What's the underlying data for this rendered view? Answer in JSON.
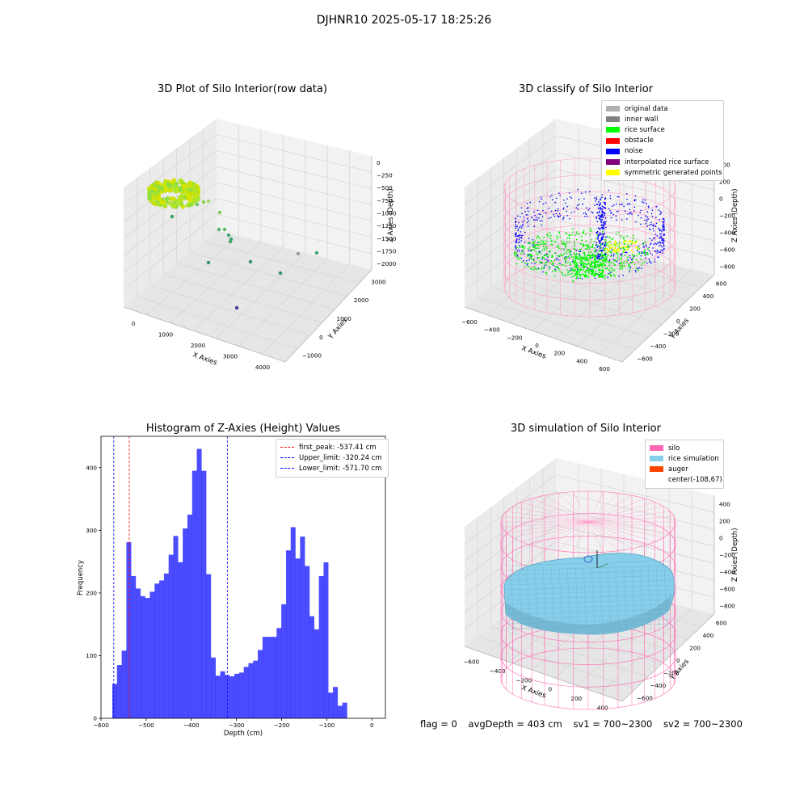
{
  "suptitle": "DJHNR10 2025-05-17 18:25:26",
  "plots": {
    "raw": {
      "title": "3D Plot of Silo Interior(row data)",
      "xlabel": "X Axies",
      "ylabel": "Y Axies",
      "zlabel": "Z Axies (Depth)",
      "xticks": [
        "0",
        "1000",
        "2000",
        "3000",
        "4000"
      ],
      "yticks": [
        "−1000",
        "0",
        "1000",
        "2000",
        "3000"
      ],
      "zticks": [
        "0",
        "−250",
        "−500",
        "−750",
        "−1000",
        "−1250",
        "−1500",
        "−1750",
        "−2000"
      ]
    },
    "classify": {
      "title": "3D classify of Silo Interior",
      "xlabel": "X Axies",
      "ylabel": "Y Axies",
      "zlabel": "Z Axies (Depth)",
      "xticks": [
        "−600",
        "−400",
        "−200",
        "0",
        "200",
        "400",
        "600"
      ],
      "yticks": [
        "−600",
        "−400",
        "−200",
        "0",
        "200",
        "400",
        "600"
      ],
      "zticks": [
        "400",
        "200",
        "0",
        "−200",
        "−400",
        "−600",
        "−800"
      ],
      "legend": [
        {
          "label": "original data",
          "color": "#b0b0b0"
        },
        {
          "label": "inner wall",
          "color": "#808080"
        },
        {
          "label": "rice surface",
          "color": "#00ff00"
        },
        {
          "label": "obstacle",
          "color": "#ff0000"
        },
        {
          "label": "noise",
          "color": "#0000ff"
        },
        {
          "label": "interpolated rice surface",
          "color": "#800080"
        },
        {
          "label": "symmetric generated points",
          "color": "#ffff00"
        }
      ]
    },
    "simulation": {
      "title": "3D simulation of Silo Interior",
      "xlabel": "X Axies",
      "ylabel": "Y Axies",
      "zlabel": "Z Axies (Depth)",
      "xticks": [
        "−600",
        "−400",
        "−200",
        "0",
        "200",
        "400"
      ],
      "yticks": [
        "−600",
        "−400",
        "−200",
        "0",
        "200",
        "400",
        "600"
      ],
      "zticks": [
        "400",
        "200",
        "0",
        "−200",
        "−400",
        "−600",
        "−800"
      ],
      "legend": [
        {
          "label": "silo",
          "color": "#ff69b4"
        },
        {
          "label": "rice simulation",
          "color": "#87ceeb"
        },
        {
          "label": "auger",
          "color": "#ff4500"
        },
        {
          "label": "center(-108,67)",
          "color": ""
        }
      ]
    }
  },
  "chart_data": {
    "type": "bar",
    "title": "Histogram of Z-Axies (Height) Values",
    "xlabel": "Depth (cm)",
    "ylabel": "Frequency",
    "xlim": [
      -600,
      30
    ],
    "ylim": [
      0,
      450
    ],
    "xticks": [
      -600,
      -500,
      -400,
      -300,
      -200,
      -100,
      0
    ],
    "xtick_labels": [
      "−600",
      "−500",
      "−400",
      "−300",
      "−200",
      "−100",
      "0"
    ],
    "yticks": [
      0,
      100,
      200,
      300,
      400
    ],
    "bin_start": -575,
    "bin_width": 10.4,
    "color": "#0000ff",
    "values": [
      55,
      85,
      108,
      281,
      227,
      207,
      195,
      192,
      202,
      215,
      220,
      231,
      261,
      291,
      249,
      303,
      325,
      395,
      430,
      395,
      230,
      97,
      68,
      75,
      69,
      67,
      71,
      73,
      82,
      88,
      92,
      109,
      130,
      130,
      130,
      144,
      182,
      268,
      305,
      255,
      290,
      243,
      163,
      142,
      227,
      249,
      41,
      50,
      20,
      25
    ],
    "vlines": [
      {
        "label": "first_peak: -537.41 cm",
        "x": -537.41,
        "color": "#ff0000"
      },
      {
        "label": "Upper_limit: -320.24 cm",
        "x": -320.24,
        "color": "#0000ff"
      },
      {
        "label": "Lower_limit: -571.70 cm",
        "x": -571.7,
        "color": "#0000ff"
      }
    ],
    "legend_position": "upper right"
  },
  "status": {
    "flag": "flag = 0",
    "avg": "avgDepth = 403 cm",
    "sv1": "sv1 = 700~2300",
    "sv2": "sv2 = 700~2300"
  }
}
